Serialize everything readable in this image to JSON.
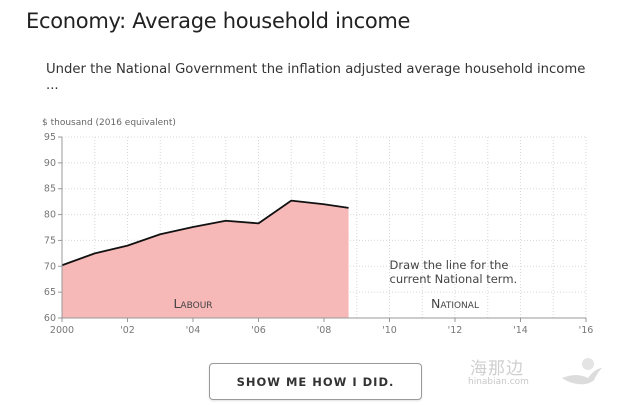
{
  "page": {
    "title": "Economy: Average household income",
    "subtitle": "Under the National Government the inflation adjusted average household income ...",
    "button_label": "SHOW ME HOW I DID.",
    "watermark_text": "海那边",
    "watermark_sub": "hinabian.com"
  },
  "colors": {
    "area_fill": "#f7b8b8",
    "line": "#111111",
    "grid": "#d8d8d8",
    "axis_text": "#777777"
  },
  "chart_data": {
    "type": "area",
    "ylabel": "$ thousand (2016 equivalent)",
    "xlabel": "",
    "xlim": [
      2000,
      2016
    ],
    "ylim": [
      60,
      95
    ],
    "x_ticks": [
      "2000",
      "'02",
      "'04",
      "'06",
      "'08",
      "'10",
      "'12",
      "'14",
      "'16"
    ],
    "y_ticks": [
      60,
      65,
      70,
      75,
      80,
      85,
      90,
      95
    ],
    "grid": true,
    "series": [
      {
        "x": [
          2000,
          2001,
          2002,
          2003,
          2004,
          2005,
          2006,
          2007,
          2008,
          2008.75
        ],
        "values": [
          70.2,
          72.5,
          74.0,
          76.2,
          77.6,
          78.8,
          78.3,
          82.7,
          82.0,
          81.3
        ]
      }
    ],
    "regions": [
      {
        "label": "Labour",
        "x": 2004
      },
      {
        "label": "National",
        "x": 2012
      }
    ],
    "annotation": {
      "lines": [
        "Draw the line for the",
        "current National term."
      ],
      "x": 2010
    }
  }
}
